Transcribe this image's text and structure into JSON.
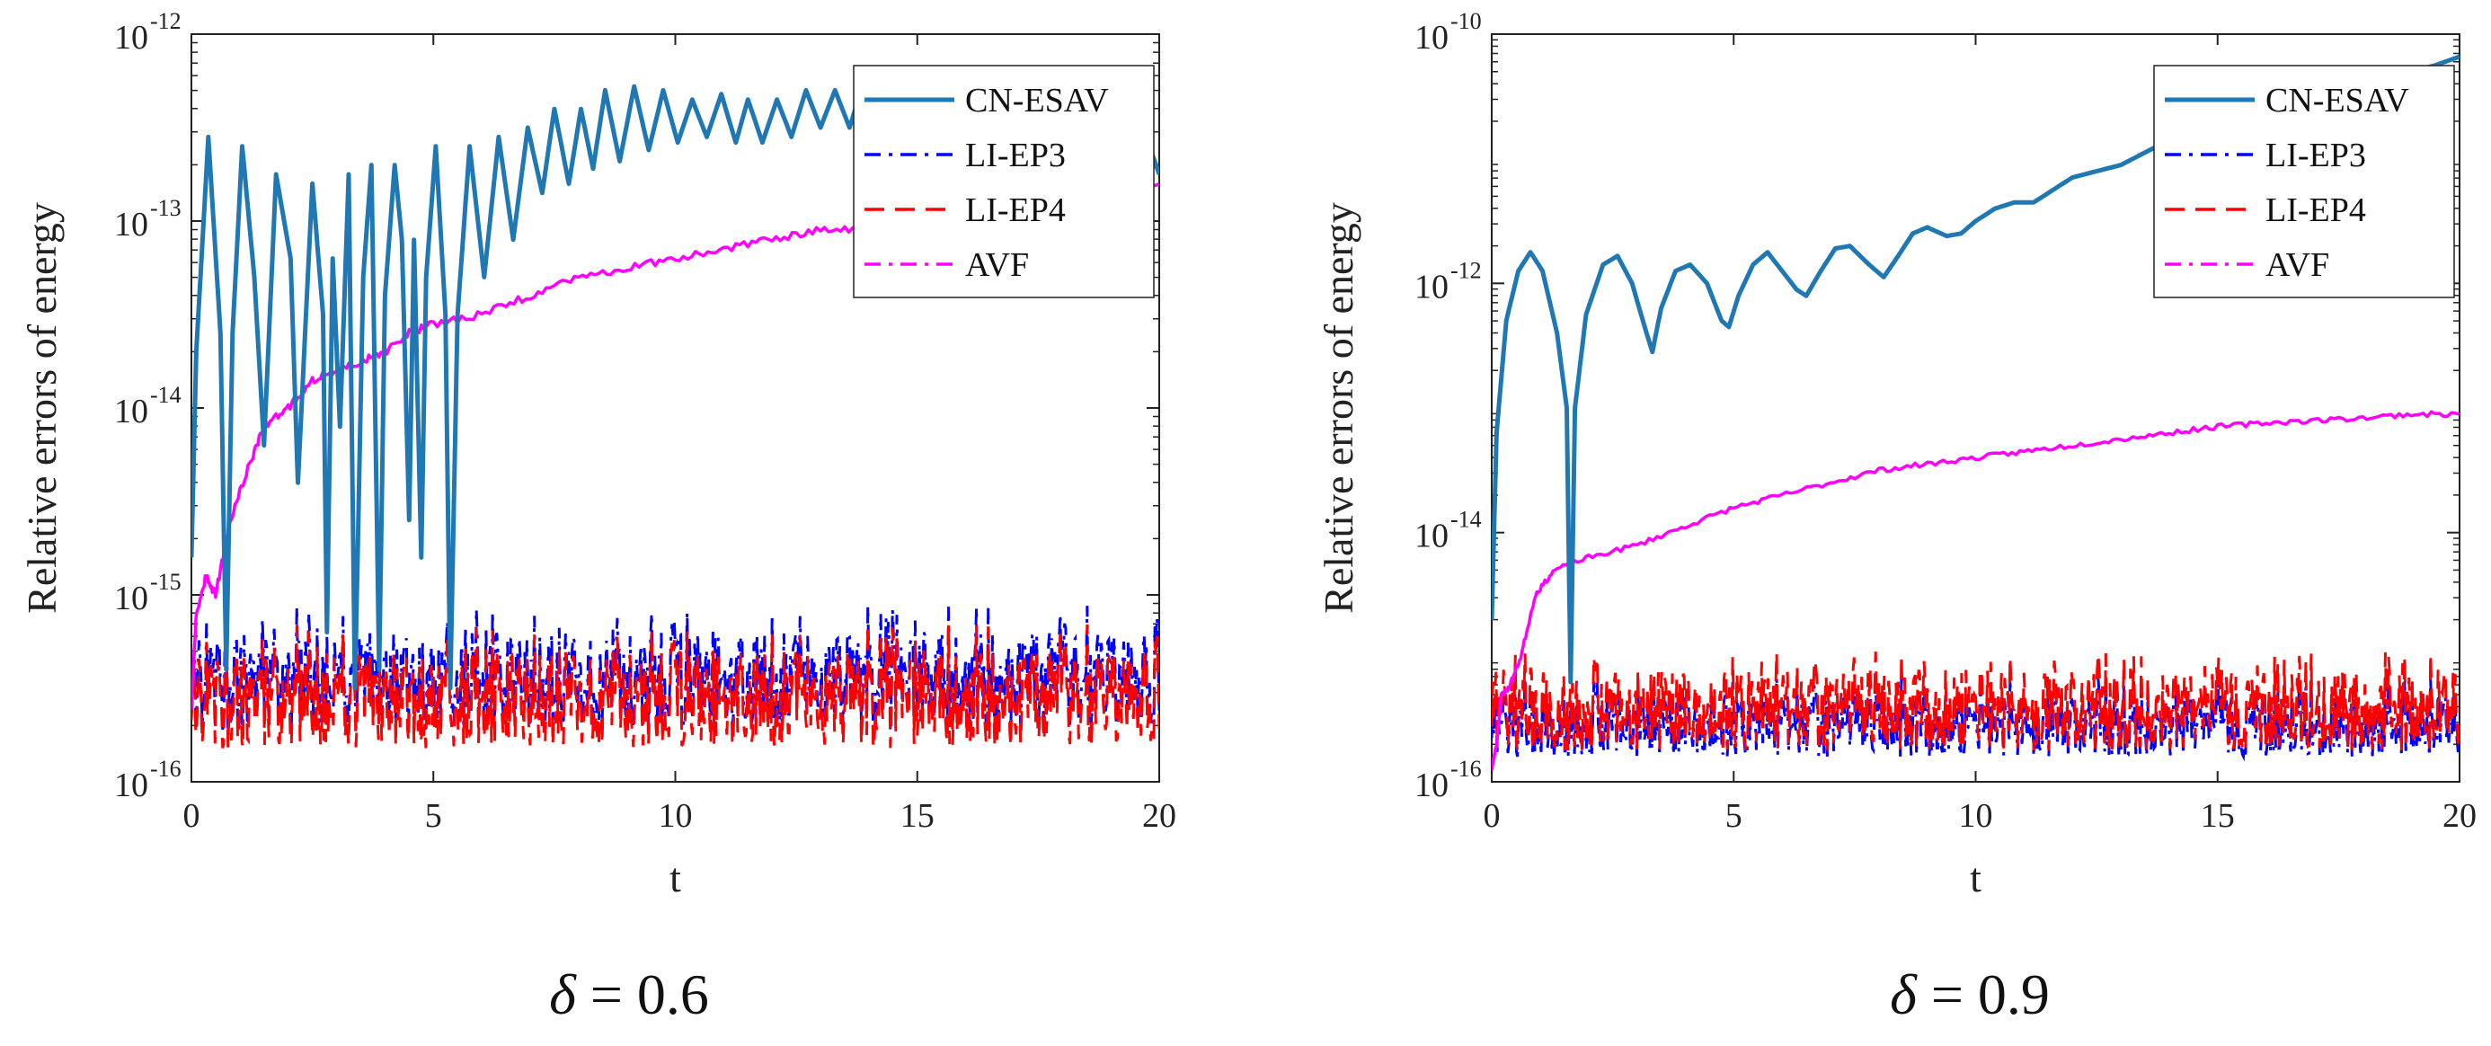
{
  "chart_data": [
    {
      "type": "line",
      "caption": "δ = 0.6",
      "caption_symbol": "δ",
      "caption_rest": " = 0.6",
      "xlabel": "t",
      "ylabel": "Relative errors of  energy",
      "xlim": [
        0,
        20
      ],
      "ylim_log10": [
        -16,
        -12
      ],
      "xticks": [
        "0",
        "5",
        "10",
        "15",
        "20"
      ],
      "yticks": [
        {
          "base": "10",
          "exp": "-16"
        },
        {
          "base": "10",
          "exp": "-15"
        },
        {
          "base": "10",
          "exp": "-14"
        },
        {
          "base": "10",
          "exp": "-13"
        },
        {
          "base": "10",
          "exp": "-12"
        }
      ],
      "legend": [
        "CN-ESAV",
        "LI-EP3",
        "LI-EP4",
        "AVF"
      ],
      "series": [
        {
          "name": "CN-ESAV",
          "color": "#1f77b4",
          "style": "solid",
          "points": [
            [
              0,
              -14.8
            ],
            [
              0.1,
              -13.7
            ],
            [
              0.35,
              -12.55
            ],
            [
              0.6,
              -13.6
            ],
            [
              0.72,
              -15.4
            ],
            [
              0.85,
              -13.6
            ],
            [
              1.05,
              -12.6
            ],
            [
              1.3,
              -13.3
            ],
            [
              1.5,
              -14.2
            ],
            [
              1.75,
              -12.75
            ],
            [
              2.05,
              -13.2
            ],
            [
              2.2,
              -14.4
            ],
            [
              2.5,
              -12.8
            ],
            [
              2.72,
              -13.5
            ],
            [
              2.8,
              -15.2
            ],
            [
              2.92,
              -13.2
            ],
            [
              3.07,
              -14.1
            ],
            [
              3.25,
              -12.75
            ],
            [
              3.38,
              -15.5
            ],
            [
              3.55,
              -13.3
            ],
            [
              3.72,
              -12.7
            ],
            [
              3.88,
              -15.4
            ],
            [
              4.0,
              -13.4
            ],
            [
              4.2,
              -12.7
            ],
            [
              4.35,
              -13.1
            ],
            [
              4.5,
              -14.6
            ],
            [
              4.6,
              -13.1
            ],
            [
              4.75,
              -14.8
            ],
            [
              4.85,
              -13.3
            ],
            [
              5.05,
              -12.6
            ],
            [
              5.25,
              -13.5
            ],
            [
              5.35,
              -15.5
            ],
            [
              5.5,
              -13.5
            ],
            [
              5.75,
              -12.6
            ],
            [
              6.05,
              -13.3
            ],
            [
              6.35,
              -12.55
            ],
            [
              6.65,
              -13.1
            ],
            [
              6.95,
              -12.5
            ],
            [
              7.25,
              -12.85
            ],
            [
              7.5,
              -12.4
            ],
            [
              7.8,
              -12.8
            ],
            [
              8.05,
              -12.4
            ],
            [
              8.3,
              -12.72
            ],
            [
              8.55,
              -12.3
            ],
            [
              8.85,
              -12.68
            ],
            [
              9.15,
              -12.28
            ],
            [
              9.45,
              -12.62
            ],
            [
              9.75,
              -12.3
            ],
            [
              10.05,
              -12.58
            ],
            [
              10.35,
              -12.35
            ],
            [
              10.65,
              -12.55
            ],
            [
              10.95,
              -12.32
            ],
            [
              11.25,
              -12.58
            ],
            [
              11.5,
              -12.35
            ],
            [
              11.8,
              -12.58
            ],
            [
              12.1,
              -12.35
            ],
            [
              12.4,
              -12.55
            ],
            [
              12.7,
              -12.3
            ],
            [
              13.0,
              -12.5
            ],
            [
              13.3,
              -12.3
            ],
            [
              13.6,
              -12.5
            ],
            [
              13.9,
              -12.25
            ],
            [
              14.2,
              -12.5
            ],
            [
              14.5,
              -12.3
            ],
            [
              14.8,
              -12.5
            ],
            [
              15.1,
              -12.25
            ],
            [
              15.4,
              -12.5
            ],
            [
              15.7,
              -12.25
            ],
            [
              16.0,
              -12.5
            ],
            [
              16.3,
              -12.28
            ],
            [
              16.6,
              -12.55
            ],
            [
              16.9,
              -12.3
            ],
            [
              17.2,
              -12.55
            ],
            [
              17.5,
              -12.3
            ],
            [
              17.8,
              -12.55
            ],
            [
              18.1,
              -12.3
            ],
            [
              18.45,
              -12.6
            ],
            [
              18.75,
              -12.3
            ],
            [
              19.05,
              -12.6
            ],
            [
              19.3,
              -12.5
            ],
            [
              19.5,
              -13.2
            ],
            [
              19.8,
              -12.6
            ],
            [
              20.0,
              -12.75
            ]
          ]
        },
        {
          "name": "LI-EP3",
          "color": "#0000ff",
          "style": "dashdot",
          "band": [
            -15.72,
            -15.2
          ],
          "spikes_to": -15.05
        },
        {
          "name": "LI-EP4",
          "color": "#ff0000",
          "style": "dashed",
          "band": [
            -15.82,
            -15.3
          ],
          "spikes_to": -15.15
        },
        {
          "name": "AVF",
          "color": "#ff00ff",
          "style": "dashdot",
          "points": [
            [
              0,
              -15.6
            ],
            [
              0.1,
              -15.1
            ],
            [
              0.3,
              -14.9
            ],
            [
              0.5,
              -15.0
            ],
            [
              0.8,
              -14.6
            ],
            [
              1.2,
              -14.3
            ],
            [
              1.5,
              -14.1
            ],
            [
              2.0,
              -14.0
            ],
            [
              2.5,
              -13.85
            ],
            [
              3.0,
              -13.8
            ],
            [
              3.5,
              -13.75
            ],
            [
              4.0,
              -13.7
            ],
            [
              4.5,
              -13.6
            ],
            [
              5.0,
              -13.55
            ],
            [
              6.0,
              -13.5
            ],
            [
              7.0,
              -13.4
            ],
            [
              8.0,
              -13.3
            ],
            [
              9.0,
              -13.25
            ],
            [
              10.0,
              -13.2
            ],
            [
              11.0,
              -13.15
            ],
            [
              12.0,
              -13.1
            ],
            [
              13.0,
              -13.05
            ],
            [
              14.0,
              -13.05
            ],
            [
              15.0,
              -13.0
            ],
            [
              16.0,
              -12.95
            ],
            [
              17.0,
              -12.95
            ],
            [
              18.0,
              -12.9
            ],
            [
              19.0,
              -12.85
            ],
            [
              20.0,
              -12.8
            ]
          ]
        }
      ]
    },
    {
      "type": "line",
      "caption": "δ = 0.9",
      "caption_symbol": "δ",
      "caption_rest": " = 0.9",
      "xlabel": "t",
      "ylabel": "Relative errors of  energy",
      "xlim": [
        0,
        20
      ],
      "ylim_log10": [
        -16,
        -10
      ],
      "xticks": [
        "0",
        "5",
        "10",
        "15",
        "20"
      ],
      "yticks": [
        {
          "base": "10",
          "exp": "-16"
        },
        {
          "base": "10",
          "exp": "-14"
        },
        {
          "base": "10",
          "exp": "-12"
        },
        {
          "base": "10",
          "exp": "-10"
        }
      ],
      "legend": [
        "CN-ESAV",
        "LI-EP3",
        "LI-EP4",
        "AVF"
      ],
      "series": [
        {
          "name": "CN-ESAV",
          "color": "#1f77b4",
          "style": "solid",
          "points": [
            [
              0,
              -14.7
            ],
            [
              0.1,
              -13.2
            ],
            [
              0.3,
              -12.3
            ],
            [
              0.55,
              -11.9
            ],
            [
              0.8,
              -11.75
            ],
            [
              1.05,
              -11.9
            ],
            [
              1.35,
              -12.4
            ],
            [
              1.55,
              -13.0
            ],
            [
              1.63,
              -15.2
            ],
            [
              1.72,
              -13.0
            ],
            [
              1.95,
              -12.25
            ],
            [
              2.3,
              -11.85
            ],
            [
              2.6,
              -11.78
            ],
            [
              2.9,
              -12.0
            ],
            [
              3.2,
              -12.4
            ],
            [
              3.32,
              -12.55
            ],
            [
              3.5,
              -12.2
            ],
            [
              3.8,
              -11.9
            ],
            [
              4.1,
              -11.85
            ],
            [
              4.45,
              -12.0
            ],
            [
              4.75,
              -12.3
            ],
            [
              4.9,
              -12.35
            ],
            [
              5.1,
              -12.1
            ],
            [
              5.4,
              -11.85
            ],
            [
              5.7,
              -11.75
            ],
            [
              6.0,
              -11.9
            ],
            [
              6.3,
              -12.05
            ],
            [
              6.5,
              -12.1
            ],
            [
              6.8,
              -11.9
            ],
            [
              7.1,
              -11.72
            ],
            [
              7.4,
              -11.7
            ],
            [
              7.8,
              -11.85
            ],
            [
              8.1,
              -11.95
            ],
            [
              8.4,
              -11.78
            ],
            [
              8.7,
              -11.6
            ],
            [
              9.0,
              -11.55
            ],
            [
              9.4,
              -11.62
            ],
            [
              9.7,
              -11.6
            ],
            [
              10.0,
              -11.5
            ],
            [
              10.4,
              -11.4
            ],
            [
              10.8,
              -11.35
            ],
            [
              11.2,
              -11.35
            ],
            [
              11.6,
              -11.25
            ],
            [
              12.0,
              -11.15
            ],
            [
              12.5,
              -11.1
            ],
            [
              13.0,
              -11.05
            ],
            [
              13.5,
              -10.95
            ],
            [
              14.0,
              -10.85
            ],
            [
              14.5,
              -10.8
            ],
            [
              15.0,
              -10.72
            ],
            [
              15.5,
              -10.65
            ],
            [
              16.0,
              -10.6
            ],
            [
              16.5,
              -10.55
            ],
            [
              17.0,
              -10.5
            ],
            [
              17.5,
              -10.45
            ],
            [
              18.0,
              -10.4
            ],
            [
              18.5,
              -10.35
            ],
            [
              19.0,
              -10.3
            ],
            [
              19.5,
              -10.25
            ],
            [
              20.0,
              -10.18
            ]
          ]
        },
        {
          "name": "LI-EP3",
          "color": "#0000ff",
          "style": "dashdot",
          "band": [
            -15.8,
            -15.3
          ],
          "spikes_to": -15.15
        },
        {
          "name": "LI-EP4",
          "color": "#ff0000",
          "style": "dashed",
          "band": [
            -15.75,
            -15.1
          ],
          "spikes_to": -14.95
        },
        {
          "name": "AVF",
          "color": "#ff00ff",
          "style": "dashdot",
          "points": [
            [
              0,
              -15.9
            ],
            [
              0.1,
              -15.7
            ],
            [
              0.2,
              -15.3
            ],
            [
              0.35,
              -15.25
            ],
            [
              0.6,
              -15.0
            ],
            [
              0.9,
              -14.5
            ],
            [
              1.3,
              -14.3
            ],
            [
              2.0,
              -14.2
            ],
            [
              3.0,
              -14.1
            ],
            [
              4.0,
              -13.95
            ],
            [
              5.0,
              -13.8
            ],
            [
              6.0,
              -13.7
            ],
            [
              7.0,
              -13.6
            ],
            [
              8.0,
              -13.5
            ],
            [
              9.0,
              -13.45
            ],
            [
              10.0,
              -13.4
            ],
            [
              11.0,
              -13.35
            ],
            [
              12.0,
              -13.3
            ],
            [
              13.0,
              -13.25
            ],
            [
              14.0,
              -13.2
            ],
            [
              15.0,
              -13.15
            ],
            [
              16.0,
              -13.12
            ],
            [
              17.0,
              -13.1
            ],
            [
              18.0,
              -13.08
            ],
            [
              19.0,
              -13.05
            ],
            [
              20.0,
              -13.05
            ]
          ]
        }
      ]
    }
  ]
}
